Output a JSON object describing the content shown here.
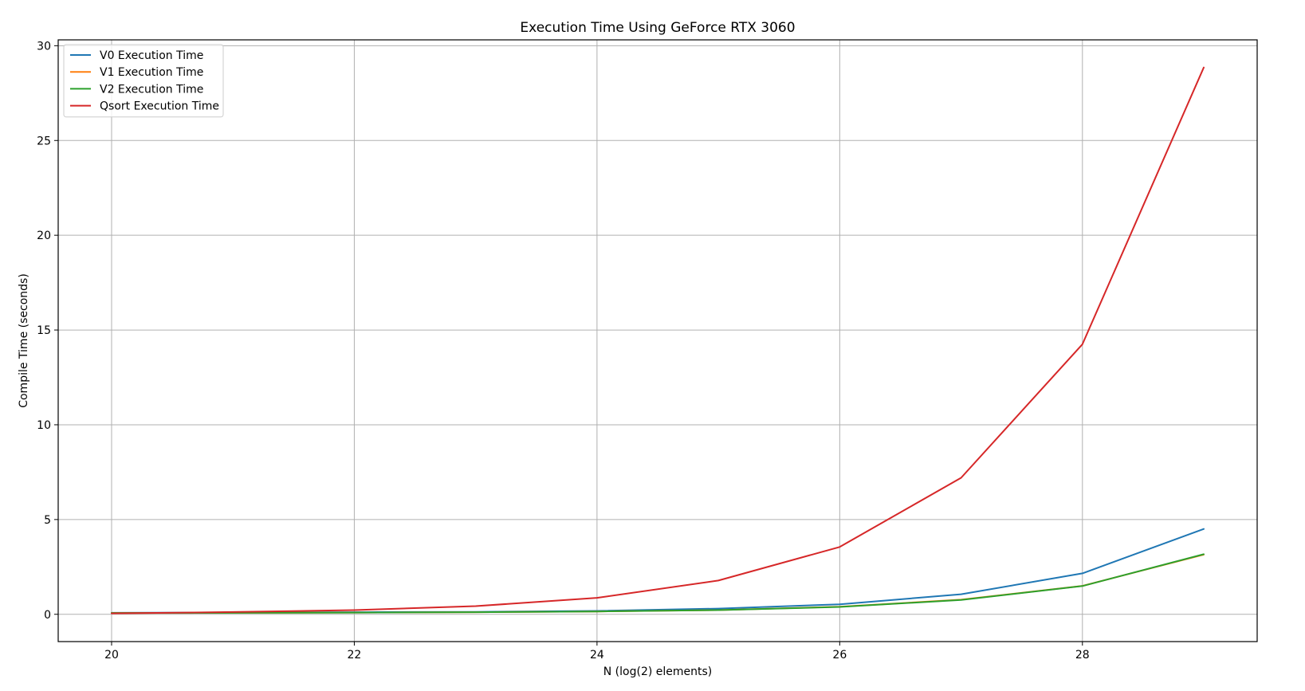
{
  "chart_data": {
    "type": "line",
    "title": "Execution Time Using GeForce RTX 3060",
    "xlabel": "N (log(2) elements)",
    "ylabel": "Compile Time (seconds)",
    "x": [
      20,
      21,
      22,
      23,
      24,
      25,
      26,
      27,
      28,
      29
    ],
    "xlim": [
      19.56,
      29.44
    ],
    "ylim": [
      -1.44,
      30.31
    ],
    "xticks": [
      20,
      22,
      24,
      26,
      28
    ],
    "yticks": [
      0,
      5,
      10,
      15,
      20,
      25,
      30
    ],
    "grid": true,
    "legend_position": "top-left",
    "series": [
      {
        "name": "V0 Execution Time",
        "color": "#1f77b4",
        "values": [
          0.08,
          0.09,
          0.11,
          0.13,
          0.18,
          0.3,
          0.53,
          1.06,
          2.16,
          4.5
        ]
      },
      {
        "name": "V1 Execution Time",
        "color": "#ff7f0e",
        "values": [
          0.07,
          0.08,
          0.09,
          0.11,
          0.15,
          0.22,
          0.4,
          0.77,
          1.5,
          3.15
        ]
      },
      {
        "name": "V2 Execution Time",
        "color": "#2ca02c",
        "values": [
          0.07,
          0.08,
          0.09,
          0.11,
          0.15,
          0.22,
          0.39,
          0.76,
          1.49,
          3.17
        ]
      },
      {
        "name": "Qsort Execution Time",
        "color": "#d62728",
        "values": [
          0.05,
          0.12,
          0.22,
          0.43,
          0.87,
          1.78,
          3.55,
          7.2,
          14.25,
          28.85
        ]
      }
    ]
  }
}
